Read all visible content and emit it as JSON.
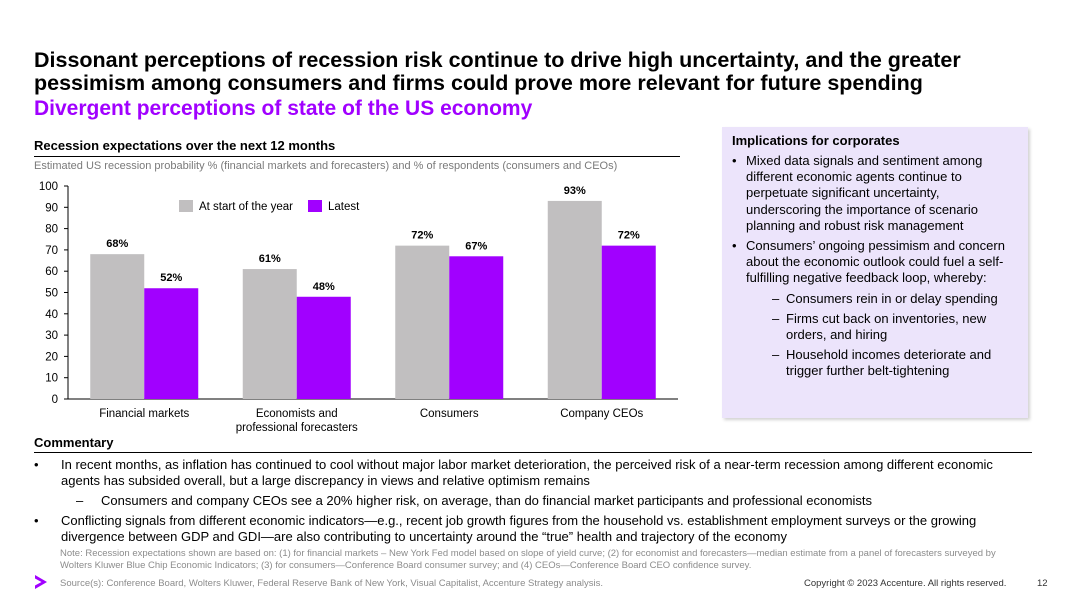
{
  "header": {
    "title": "Dissonant perceptions of recession risk continue to drive high uncertainty, and the greater pessimism among consumers and firms could prove more relevant for future spending",
    "subtitle": "Divergent perceptions of state of the US economy"
  },
  "chart_section": {
    "heading": "Recession expectations over the next 12 months",
    "note": "Estimated US recession probability % (financial markets and forecasters) and % of respondents (consumers and CEOs)"
  },
  "chart_data": {
    "type": "bar",
    "categories": [
      [
        "Financial markets"
      ],
      [
        "Economists and",
        "professional forecasters"
      ],
      [
        "Consumers"
      ],
      [
        "Company CEOs"
      ]
    ],
    "series": [
      {
        "name": "At start of the year",
        "values": [
          68,
          61,
          72,
          93
        ],
        "color": "#c1bfc0"
      },
      {
        "name": "Latest",
        "values": [
          52,
          48,
          67,
          72
        ],
        "color": "#a100ff"
      }
    ],
    "data_labels": [
      [
        "68%",
        "61%",
        "72%",
        "93%"
      ],
      [
        "52%",
        "48%",
        "67%",
        "72%"
      ]
    ],
    "ylim": [
      0,
      100
    ],
    "yticks": [
      0,
      10,
      20,
      30,
      40,
      50,
      60,
      70,
      80,
      90,
      100
    ],
    "legend_position": "top-left",
    "grid": false
  },
  "implications": {
    "heading": "Implications for corporates",
    "bullet1": "Mixed data signals and sentiment among different economic agents continue to perpetuate significant uncertainty, underscoring the importance of scenario planning and robust risk management",
    "bullet2": "Consumers’ ongoing pessimism and concern about the economic outlook could fuel a self-fulfilling negative feedback loop, whereby:",
    "sub1": "Consumers rein in or delay spending",
    "sub2": "Firms cut back on inventories, new orders, and hiring",
    "sub3": "Household incomes deteriorate and trigger further belt-tightening"
  },
  "commentary": {
    "heading": "Commentary",
    "bullet1": "In recent months, as inflation has continued to cool without major labor market deterioration, the perceived risk of a near-term recession among different economic agents has subsided overall, but a large discrepancy in views and relative optimism remains",
    "sub1": "Consumers and company CEOs see a 20% higher risk, on average, than do financial market participants and professional economists",
    "bullet2": "Conflicting signals from different economic indicators—e.g., recent job growth figures from the household vs. establishment employment surveys or the growing divergence between GDP and GDI—are also contributing to uncertainty around the “true” health and trajectory of the economy"
  },
  "footer": {
    "note": "Note: Recession expectations shown are based on: (1) for financial markets – New York Fed model based on slope of yield curve; (2) for economist and forecasters—median estimate from a panel of forecasters surveyed by Wolters Kluwer Blue Chip Economic Indicators; (3) for consumers—Conference Board consumer survey; and  (4) CEOs—Conference Board CEO confidence survey.",
    "source": "Source(s): Conference Board, Wolters Kluwer, Federal Reserve Bank of New York, Visual Capitalist, Accenture Strategy analysis.",
    "copyright": "Copyright © 2023 Accenture. All rights reserved.",
    "page": "12"
  },
  "colors": {
    "brand": "#a100ff",
    "grey_bar": "#c1bfc0",
    "panel_bg": "#ece4fb"
  }
}
